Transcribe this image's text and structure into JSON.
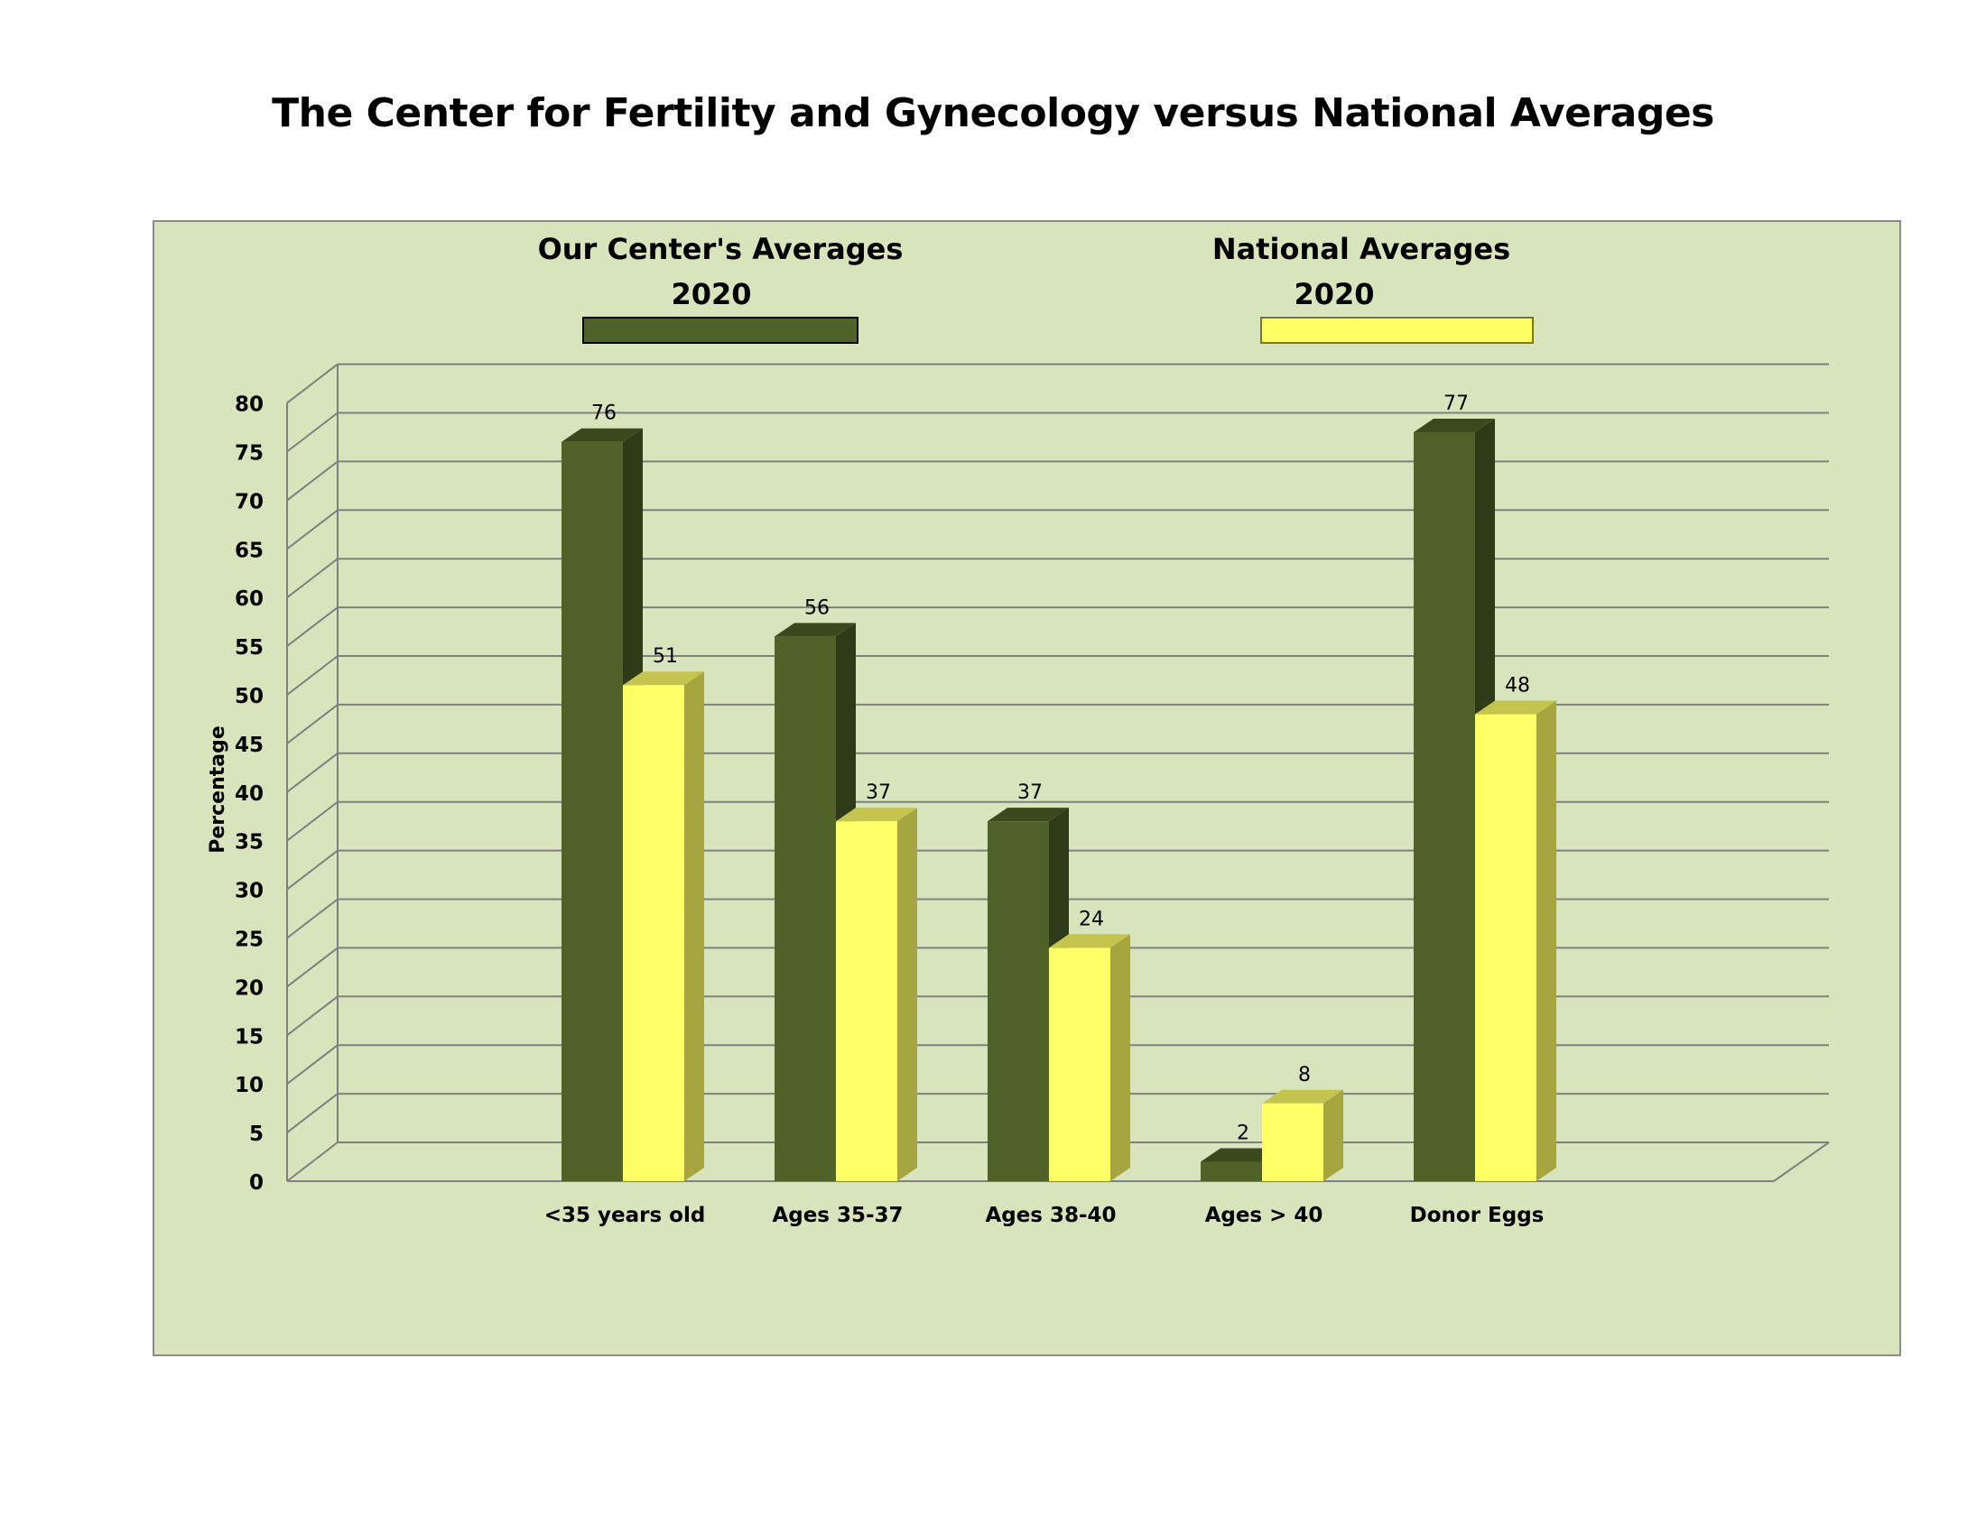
{
  "chart_data": {
    "type": "bar",
    "title": "The Center for Fertility and Gynecology versus National Averages",
    "xlabel": "",
    "ylabel": "Percentage",
    "ylim": [
      0,
      80
    ],
    "yticks": [
      0,
      5,
      10,
      15,
      20,
      25,
      30,
      35,
      40,
      45,
      50,
      55,
      60,
      65,
      70,
      75,
      80
    ],
    "categories": [
      "<35 years old",
      "Ages 35-37",
      "Ages 38-40",
      "Ages > 40",
      "Donor Eggs"
    ],
    "series": [
      {
        "name": "Our Center's Averages",
        "year": "2020",
        "values": [
          76,
          56,
          37,
          2,
          77
        ]
      },
      {
        "name": "National  Averages",
        "year": "2020",
        "values": [
          51,
          37,
          24,
          8,
          48
        ]
      }
    ],
    "grid": true,
    "legend_position": "top",
    "three_d": true
  },
  "colors": {
    "plot_background": "#d8e4bc",
    "gridline": "#7f7f7f",
    "series_0_front": "#4f6228",
    "series_0_side": "#2f3b18",
    "series_0_top": "#3b4a1e",
    "series_1_front": "#ffff66",
    "series_1_side": "#a6a640",
    "series_1_top": "#c4c44e"
  }
}
